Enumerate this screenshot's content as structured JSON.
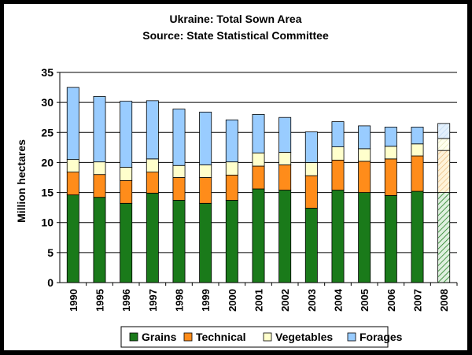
{
  "chart_data": {
    "type": "bar",
    "stacked": true,
    "title": "Ukraine:  Total Sown Area",
    "subtitle": "Source:  State Statistical Committee",
    "xlabel": "",
    "ylabel": "Million hectares",
    "ylim": [
      0,
      35
    ],
    "yticks": [
      0,
      5,
      10,
      15,
      20,
      25,
      30,
      35
    ],
    "grid": true,
    "legend_position": "bottom",
    "categories": [
      "1990",
      "1995",
      "1996",
      "1997",
      "1998",
      "1999",
      "2000",
      "2001",
      "2002",
      "2003",
      "2004",
      "2005",
      "2006",
      "2007",
      "2008"
    ],
    "series": [
      {
        "name": "Grains",
        "color": "#1a7a1a",
        "values": [
          14.6,
          14.2,
          13.2,
          14.9,
          13.7,
          13.2,
          13.7,
          15.6,
          15.4,
          12.4,
          15.4,
          15.0,
          14.5,
          15.2,
          15.0
        ]
      },
      {
        "name": "Technical",
        "color": "#ff8c1a",
        "values": [
          3.8,
          3.8,
          3.8,
          3.5,
          3.8,
          4.3,
          4.2,
          3.8,
          4.2,
          5.4,
          5.0,
          5.2,
          6.1,
          5.9,
          7.0
        ]
      },
      {
        "name": "Vegetables",
        "color": "#ffffcc",
        "values": [
          2.1,
          2.1,
          2.2,
          2.2,
          2.0,
          2.1,
          2.2,
          2.2,
          2.1,
          2.2,
          2.2,
          2.1,
          2.1,
          2.0,
          2.0
        ]
      },
      {
        "name": "Forages",
        "color": "#99ccff",
        "values": [
          12.0,
          10.9,
          11.0,
          9.7,
          9.4,
          8.8,
          7.0,
          6.4,
          5.8,
          5.1,
          4.2,
          3.8,
          3.2,
          2.8,
          2.5
        ]
      }
    ],
    "forecast_categories": [
      "2008"
    ]
  }
}
